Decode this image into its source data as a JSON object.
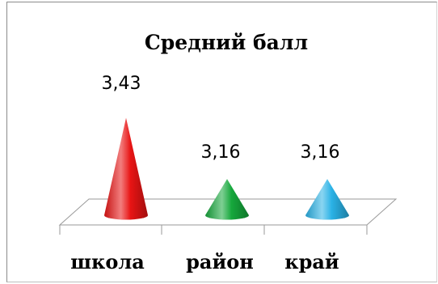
{
  "chart_data": {
    "type": "bar",
    "bar_shape": "cone-3d",
    "title": "Средний балл",
    "xlabel": "",
    "ylabel": "",
    "categories": [
      "школа",
      "район",
      "край"
    ],
    "values": [
      3.43,
      3.16,
      3.16
    ],
    "data_labels": [
      "3,43",
      "3,16",
      "3,16"
    ],
    "colors": [
      "#e81414",
      "#16a83c",
      "#2ab2e6"
    ],
    "ylim": [
      3.0,
      3.5
    ],
    "grid": false,
    "legend": "none"
  }
}
